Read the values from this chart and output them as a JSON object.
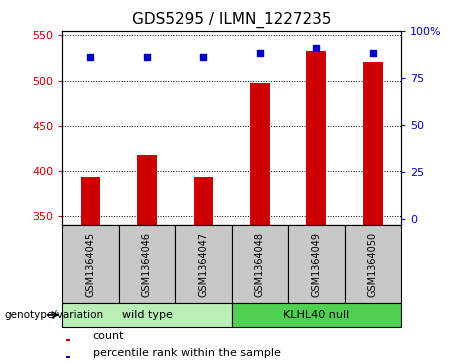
{
  "title": "GDS5295 / ILMN_1227235",
  "samples": [
    "GSM1364045",
    "GSM1364046",
    "GSM1364047",
    "GSM1364048",
    "GSM1364049",
    "GSM1364050"
  ],
  "counts": [
    393,
    418,
    393,
    497,
    533,
    520
  ],
  "percentiles": [
    86,
    86,
    86,
    88,
    91,
    88
  ],
  "ylim_left": [
    340,
    555
  ],
  "yticks_left": [
    350,
    400,
    450,
    500,
    550
  ],
  "ylim_right": [
    -3,
    100
  ],
  "yticks_right": [
    0,
    25,
    50,
    75,
    100
  ],
  "bar_color": "#cc0000",
  "dot_color": "#0000cc",
  "bar_width": 0.35,
  "group_label_prefix": "genotype/variation",
  "legend_count_label": "count",
  "legend_pct_label": "percentile rank within the sample",
  "plot_bg": "#ffffff",
  "label_area_bg": "#c8c8c8",
  "group_wt_bg": "#b8f0b8",
  "group_kl_bg": "#50d050",
  "axis_label_color_left": "#cc0000",
  "axis_label_color_right": "#0000cc",
  "grid_color": "#000000",
  "title_fontsize": 11,
  "tick_fontsize": 8,
  "label_fontsize": 8
}
